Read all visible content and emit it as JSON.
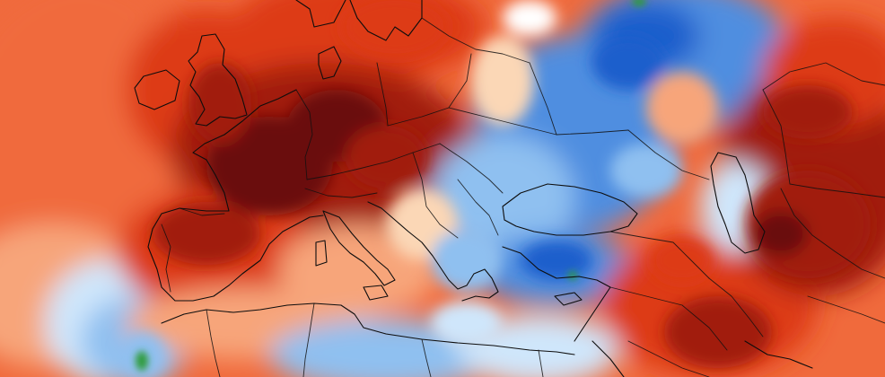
{
  "map": {
    "type": "temperature-anomaly",
    "region": "Europe",
    "colors": {
      "extreme_warm": "#6b0c0c",
      "very_warm": "#a11a0e",
      "warm": "#dd3a17",
      "mild_warm": "#f06a3c",
      "slight_warm": "#f7a57a",
      "near_zero_warm": "#fbd7b6",
      "neutral": "#ffffff",
      "near_zero_cool": "#cfe6fb",
      "slight_cool": "#8fc0f0",
      "cool": "#4f8ee0",
      "very_cool": "#1f5fcc",
      "extreme_cool": "#2e9b3a"
    },
    "regions": {
      "western_europe": "very_warm",
      "france": "extreme_warm",
      "germany": "extreme_warm",
      "iberia": "warm",
      "atlantic": "mild_warm",
      "british_isles": "warm",
      "eastern_europe": "cool",
      "balkans": "slight_cool",
      "turkey": "cool",
      "caucasus": "very_warm",
      "central_asia": "very_warm",
      "middle_east": "warm",
      "north_africa": "slight_cool",
      "mediterranean": "near_zero_cool",
      "russia": "cool",
      "scandinavia": "warm"
    },
    "legend": null
  }
}
